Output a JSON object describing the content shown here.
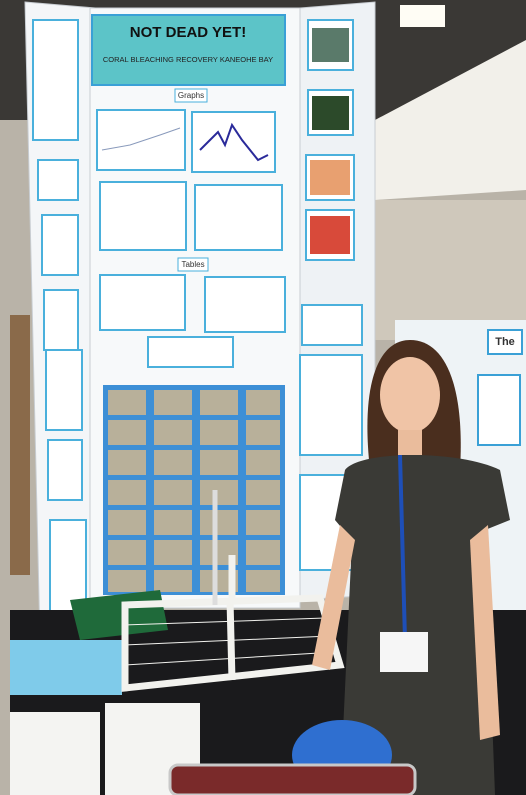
{
  "board": {
    "title": "NOT DEAD YET!",
    "subtitle": "CORAL BLEACHING RECOVERY KANEOHE BAY",
    "sections": [
      "Graphs",
      "Tables"
    ]
  },
  "neighbor_board": {
    "title": "The"
  }
}
